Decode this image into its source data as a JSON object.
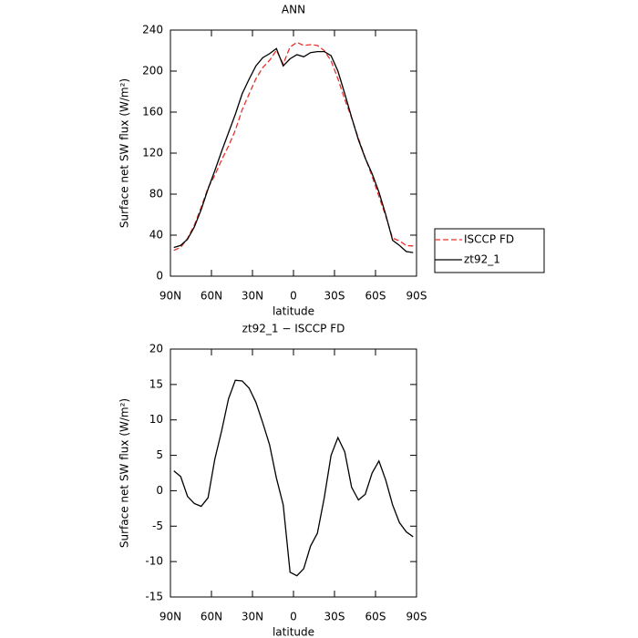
{
  "chart_data": [
    {
      "type": "line",
      "title": "ANN",
      "xlabel": "latitude",
      "ylabel": "Surface net SW flux (W/m²)",
      "x": [
        87.5,
        82.5,
        77.5,
        72.5,
        67.5,
        62.5,
        57.5,
        52.5,
        47.5,
        42.5,
        37.5,
        32.5,
        27.5,
        22.5,
        17.5,
        12.5,
        7.5,
        2.5,
        -2.5,
        -7.5,
        -12.5,
        -17.5,
        -22.5,
        -27.5,
        -32.5,
        -37.5,
        -42.5,
        -47.5,
        -52.5,
        -57.5,
        -62.5,
        -67.5,
        -72.5,
        -77.5,
        -82.5,
        -87.5
      ],
      "series": [
        {
          "name": "ISCCP FD",
          "color": "#e8302a",
          "linestyle": "dashed",
          "values": [
            25.2,
            28,
            36.8,
            49.8,
            67.2,
            86,
            98.5,
            113.5,
            127,
            142.4,
            162.5,
            177.5,
            192.5,
            203.4,
            210.5,
            220.2,
            207,
            223.5,
            228,
            225,
            225.8,
            225,
            220,
            210,
            192.5,
            172.5,
            154.5,
            134.3,
            115.5,
            97.5,
            77.8,
            58.5,
            37,
            34.5,
            29.8,
            29.5
          ]
        },
        {
          "name": "zt92_1",
          "color": "#000000",
          "linestyle": "solid",
          "values": [
            28,
            30,
            36,
            48,
            65,
            85,
            103,
            122,
            140,
            158,
            178,
            192,
            205,
            213,
            217,
            222,
            205,
            212,
            216,
            214,
            218,
            219,
            219,
            215,
            200,
            178,
            155,
            133,
            115,
            100,
            82,
            60,
            35,
            30,
            24,
            23
          ]
        }
      ],
      "xlim": [
        90,
        -90
      ],
      "xticks": [
        {
          "value": 90,
          "label": "90N"
        },
        {
          "value": 60,
          "label": "60N"
        },
        {
          "value": 30,
          "label": "30N"
        },
        0,
        {
          "value": -30,
          "label": "30S"
        },
        {
          "value": -60,
          "label": "60S"
        },
        {
          "value": -90,
          "label": "90S"
        }
      ],
      "ylim": [
        0,
        240
      ],
      "yticks": [
        0,
        40,
        80,
        120,
        160,
        200,
        240
      ],
      "legend": "right"
    },
    {
      "type": "line",
      "title": "zt92_1 − ISCCP FD",
      "xlabel": "latitude",
      "ylabel": "Surface net SW flux (W/m²)",
      "x": [
        87.5,
        82.5,
        77.5,
        72.5,
        67.5,
        62.5,
        57.5,
        52.5,
        47.5,
        42.5,
        37.5,
        32.5,
        27.5,
        22.5,
        17.5,
        12.5,
        7.5,
        2.5,
        -2.5,
        -7.5,
        -12.5,
        -17.5,
        -22.5,
        -27.5,
        -32.5,
        -37.5,
        -42.5,
        -47.5,
        -52.5,
        -57.5,
        -62.5,
        -67.5,
        -72.5,
        -77.5,
        -82.5,
        -87.5
      ],
      "color": "#000000",
      "values": [
        2.8,
        2.0,
        -0.8,
        -1.8,
        -2.2,
        -1.0,
        4.5,
        8.5,
        13,
        15.6,
        15.5,
        14.5,
        12.5,
        9.6,
        6.5,
        1.8,
        -2,
        -11.5,
        -12,
        -11,
        -7.8,
        -6,
        -1,
        5,
        7.5,
        5.5,
        0.5,
        -1.3,
        -0.5,
        2.5,
        4.2,
        1.5,
        -2,
        -4.5,
        -5.8,
        -6.5
      ],
      "xlim": [
        90,
        -90
      ],
      "xticks": [
        {
          "value": 90,
          "label": "90N"
        },
        {
          "value": 60,
          "label": "60N"
        },
        {
          "value": 30,
          "label": "30N"
        },
        0,
        {
          "value": -30,
          "label": "30S"
        },
        {
          "value": -60,
          "label": "60S"
        },
        {
          "value": -90,
          "label": "90S"
        }
      ],
      "ylim": [
        -15,
        20
      ],
      "yticks": [
        -15,
        -10,
        -5,
        0,
        5,
        10,
        15,
        20
      ]
    }
  ]
}
